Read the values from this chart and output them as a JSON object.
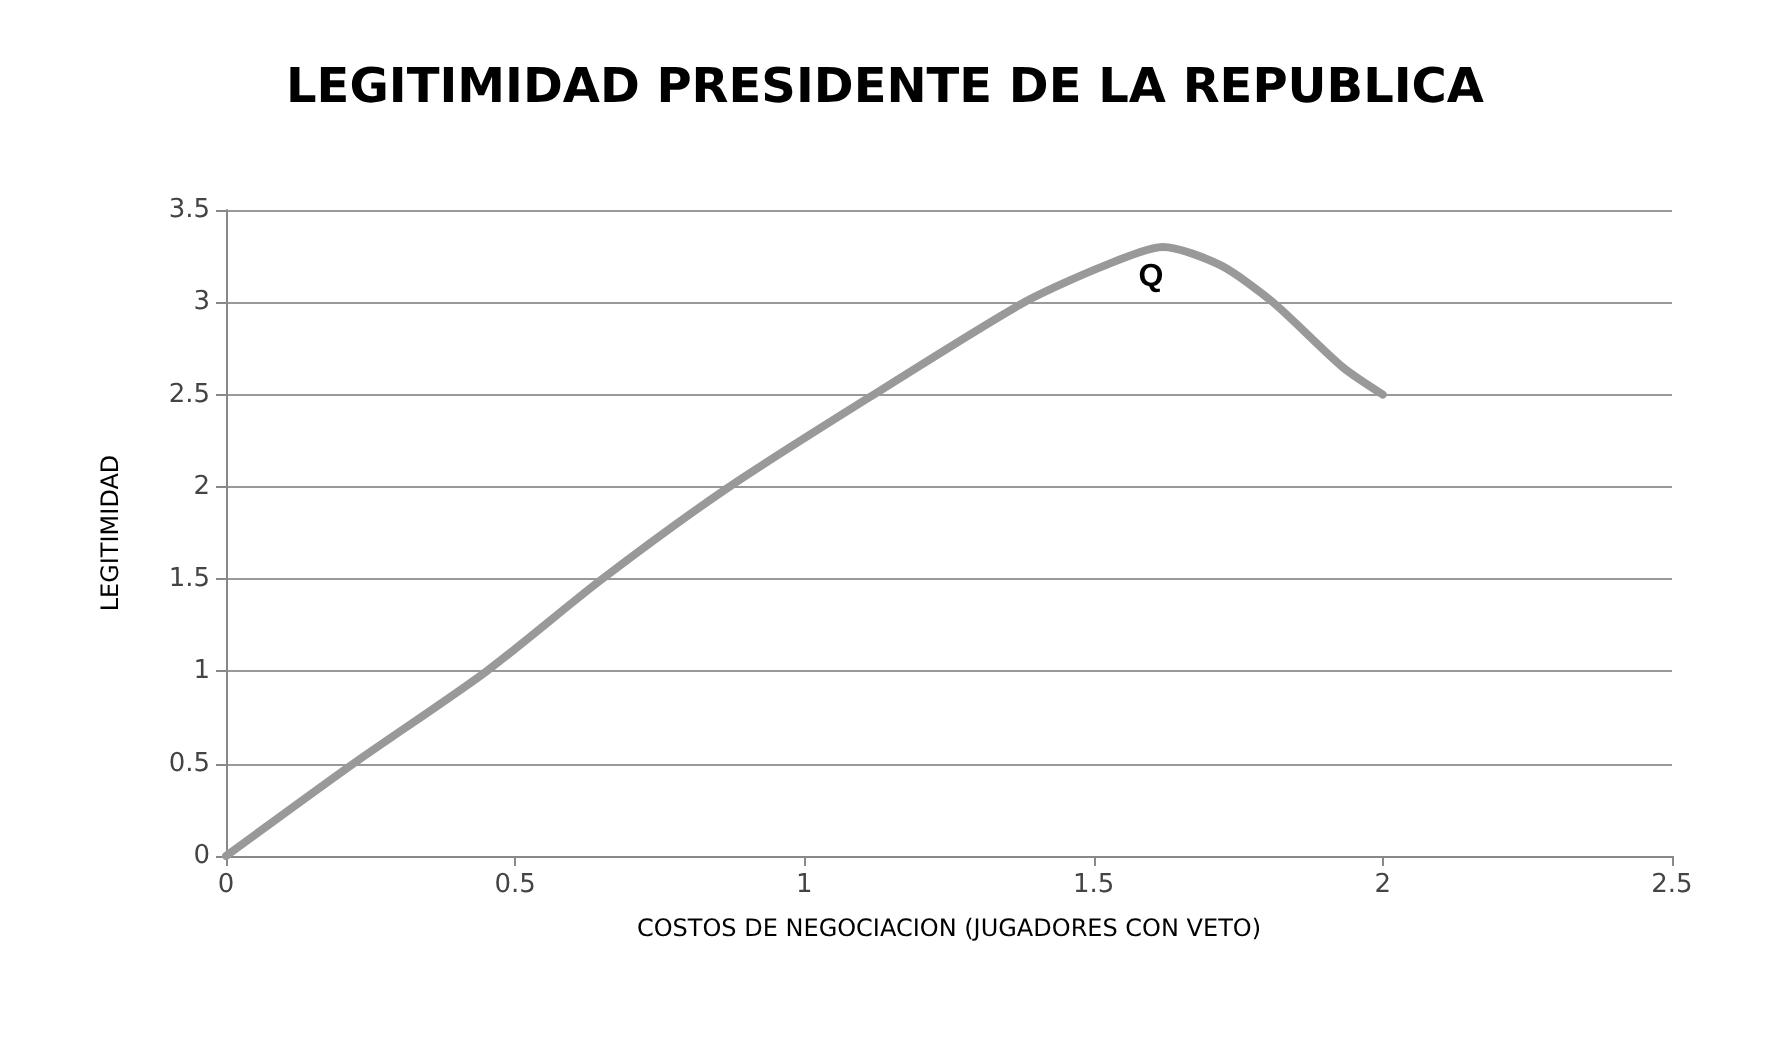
{
  "chart_data": {
    "type": "line",
    "title": "LEGITIMIDAD PRESIDENTE DE LA REPUBLICA",
    "xlabel": "COSTOS DE NEGOCIACION (JUGADORES CON VETO)",
    "ylabel": "LEGITIMIDAD",
    "x": [
      0,
      0.22,
      0.45,
      0.65,
      0.87,
      1.12,
      1.38,
      1.52,
      1.62,
      1.72,
      1.81,
      1.93,
      2.0
    ],
    "series": [
      {
        "color": "#999999",
        "values": [
          0,
          0.5,
          1.0,
          1.5,
          2.0,
          2.5,
          3.0,
          3.2,
          3.3,
          3.2,
          3.0,
          2.65,
          2.5
        ]
      }
    ],
    "annotations": [
      {
        "text": "Q",
        "x": 1.62,
        "y": 3.3
      }
    ],
    "xlim": [
      0,
      2.5
    ],
    "xticks": [
      0,
      0.5,
      1,
      1.5,
      2,
      2.5
    ],
    "ylim": [
      0,
      3.5
    ],
    "yticks": [
      0,
      0.5,
      1,
      1.5,
      2,
      2.5,
      3,
      3.5
    ],
    "grid": "y",
    "marker": "none",
    "line_style": "solid"
  }
}
